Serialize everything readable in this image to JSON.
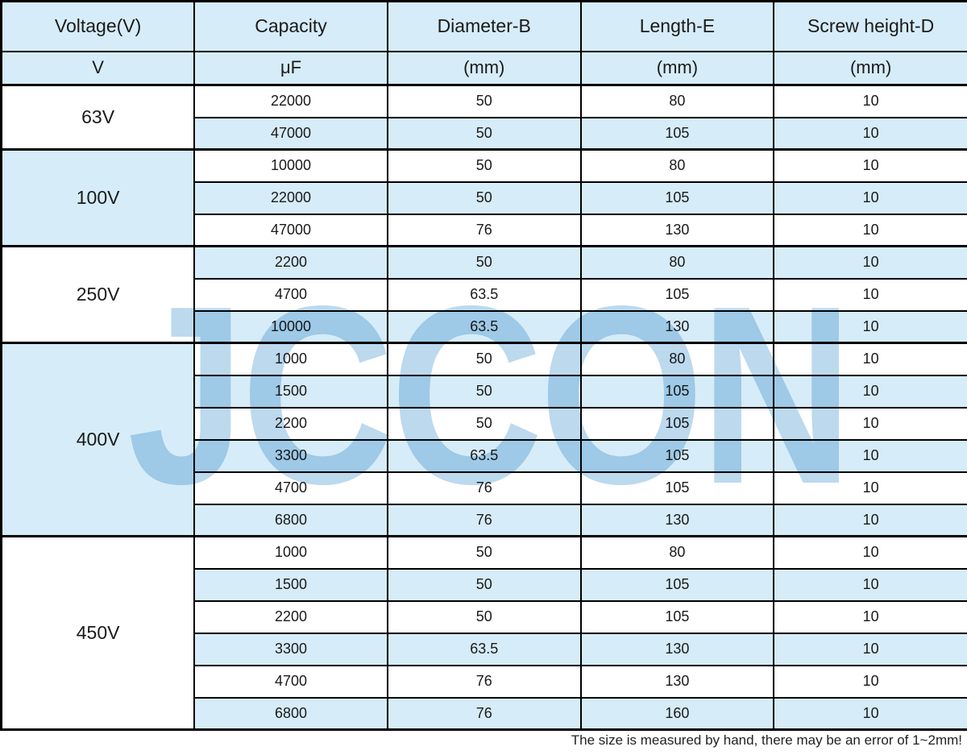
{
  "page": {
    "watermark_text": "JCCON",
    "footer_note": "The size is measured by hand, there may be an error of 1~2mm!"
  },
  "colors": {
    "cell_blue": "#d6ecf8",
    "border_black": "#000000",
    "watermark_blue": "#bcd9ee",
    "text_color": "#1a1a1a"
  },
  "table": {
    "headers": [
      "Voltage(V)",
      "Capacity",
      "Diameter-B",
      "Length-E",
      "Screw height-D"
    ],
    "units": [
      "V",
      "μF",
      "(mm)",
      "(mm)",
      "(mm)"
    ],
    "column_keys": [
      "capacity",
      "diameter-b",
      "length-e",
      "screw-height-d"
    ],
    "groups": [
      {
        "voltage": "63V",
        "rows": [
          [
            "22000",
            "50",
            "80",
            "10"
          ],
          [
            "47000",
            "50",
            "105",
            "10"
          ]
        ]
      },
      {
        "voltage": "100V",
        "rows": [
          [
            "10000",
            "50",
            "80",
            "10"
          ],
          [
            "22000",
            "50",
            "105",
            "10"
          ],
          [
            "47000",
            "76",
            "130",
            "10"
          ]
        ]
      },
      {
        "voltage": "250V",
        "rows": [
          [
            "2200",
            "50",
            "80",
            "10"
          ],
          [
            "4700",
            "63.5",
            "105",
            "10"
          ],
          [
            "10000",
            "63.5",
            "130",
            "10"
          ]
        ]
      },
      {
        "voltage": "400V",
        "rows": [
          [
            "1000",
            "50",
            "80",
            "10"
          ],
          [
            "1500",
            "50",
            "105",
            "10"
          ],
          [
            "2200",
            "50",
            "105",
            "10"
          ],
          [
            "3300",
            "63.5",
            "105",
            "10"
          ],
          [
            "4700",
            "76",
            "105",
            "10"
          ],
          [
            "6800",
            "76",
            "130",
            "10"
          ]
        ]
      },
      {
        "voltage": "450V",
        "rows": [
          [
            "1000",
            "50",
            "80",
            "10"
          ],
          [
            "1500",
            "50",
            "105",
            "10"
          ],
          [
            "2200",
            "50",
            "105",
            "10"
          ],
          [
            "3300",
            "63.5",
            "130",
            "10"
          ],
          [
            "4700",
            "76",
            "130",
            "10"
          ],
          [
            "6800",
            "76",
            "160",
            "10"
          ]
        ]
      }
    ]
  }
}
